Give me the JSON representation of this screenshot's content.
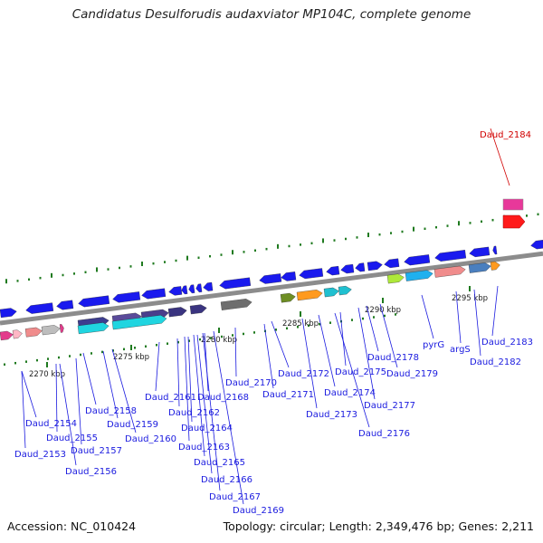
{
  "title": "Candidatus Desulforudis audaxviator MP104C, complete genome",
  "footer": {
    "accession": "Accession: NC_010424",
    "summary": "Topology: circular; Length: 2,349,476 bp; Genes: 2,211"
  },
  "colors": {
    "backbone": "#8c8c8c",
    "cds_forward": "#1a1aee",
    "tick": "#1f7a1f",
    "label_line": "#1a1adf",
    "highlight": "#d10000"
  },
  "ticks": [
    "2270 kbp",
    "2275 kbp",
    "2280 kbp",
    "2285 kbp",
    "2290 kbp",
    "2295 kbp"
  ],
  "labels": [
    {
      "text": "Daud_2153",
      "kind": "normal"
    },
    {
      "text": "Daud_2154",
      "kind": "normal"
    },
    {
      "text": "Daud_2155",
      "kind": "normal"
    },
    {
      "text": "Daud_2156",
      "kind": "normal"
    },
    {
      "text": "Daud_2157",
      "kind": "normal"
    },
    {
      "text": "Daud_2158",
      "kind": "normal"
    },
    {
      "text": "Daud_2159",
      "kind": "normal"
    },
    {
      "text": "Daud_2160",
      "kind": "normal"
    },
    {
      "text": "Daud_2161",
      "kind": "normal"
    },
    {
      "text": "Daud_2162",
      "kind": "normal"
    },
    {
      "text": "Daud_2163",
      "kind": "normal"
    },
    {
      "text": "Daud_2164",
      "kind": "normal"
    },
    {
      "text": "Daud_2165",
      "kind": "normal"
    },
    {
      "text": "Daud_2166",
      "kind": "normal"
    },
    {
      "text": "Daud_2167",
      "kind": "normal"
    },
    {
      "text": "Daud_2168",
      "kind": "normal"
    },
    {
      "text": "Daud_2169",
      "kind": "normal"
    },
    {
      "text": "Daud_2170",
      "kind": "normal"
    },
    {
      "text": "Daud_2171",
      "kind": "normal"
    },
    {
      "text": "Daud_2172",
      "kind": "normal"
    },
    {
      "text": "Daud_2173",
      "kind": "normal"
    },
    {
      "text": "Daud_2174",
      "kind": "normal"
    },
    {
      "text": "Daud_2175",
      "kind": "normal"
    },
    {
      "text": "Daud_2176",
      "kind": "normal"
    },
    {
      "text": "Daud_2177",
      "kind": "normal"
    },
    {
      "text": "Daud_2178",
      "kind": "normal"
    },
    {
      "text": "Daud_2179",
      "kind": "normal"
    },
    {
      "text": "pyrG",
      "kind": "normal"
    },
    {
      "text": "argS",
      "kind": "normal"
    },
    {
      "text": "Daud_2182",
      "kind": "normal"
    },
    {
      "text": "Daud_2183",
      "kind": "normal"
    },
    {
      "text": "Daud_2184",
      "kind": "highlight"
    }
  ]
}
